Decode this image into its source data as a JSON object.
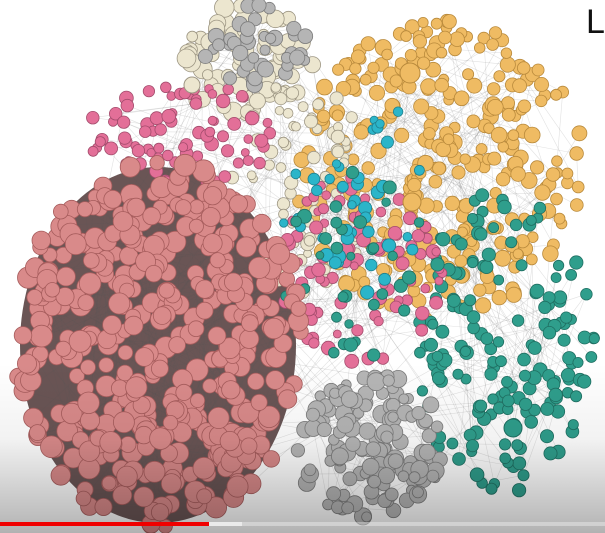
{
  "video": {
    "title_fragment": "Li"
  },
  "player": {
    "progress_played_fraction": 0.345,
    "progress_buffered_fraction": 0.4,
    "progress_color": "#f00000"
  },
  "graph": {
    "communities": [
      {
        "name": "red",
        "fill": "#d98a8a",
        "stroke": "#a65c5c"
      },
      {
        "name": "orange",
        "fill": "#efbb63",
        "stroke": "#b98a3c"
      },
      {
        "name": "teal",
        "fill": "#2f9e8c",
        "stroke": "#1f6f62"
      },
      {
        "name": "gray",
        "fill": "#b5b5b5",
        "stroke": "#7b7b7b"
      },
      {
        "name": "cream",
        "fill": "#ece6cf",
        "stroke": "#9e9784"
      },
      {
        "name": "pink",
        "fill": "#e36f98",
        "stroke": "#a34c6c"
      },
      {
        "name": "cyan",
        "fill": "#2bb5c9",
        "stroke": "#1f7f8d"
      }
    ]
  }
}
